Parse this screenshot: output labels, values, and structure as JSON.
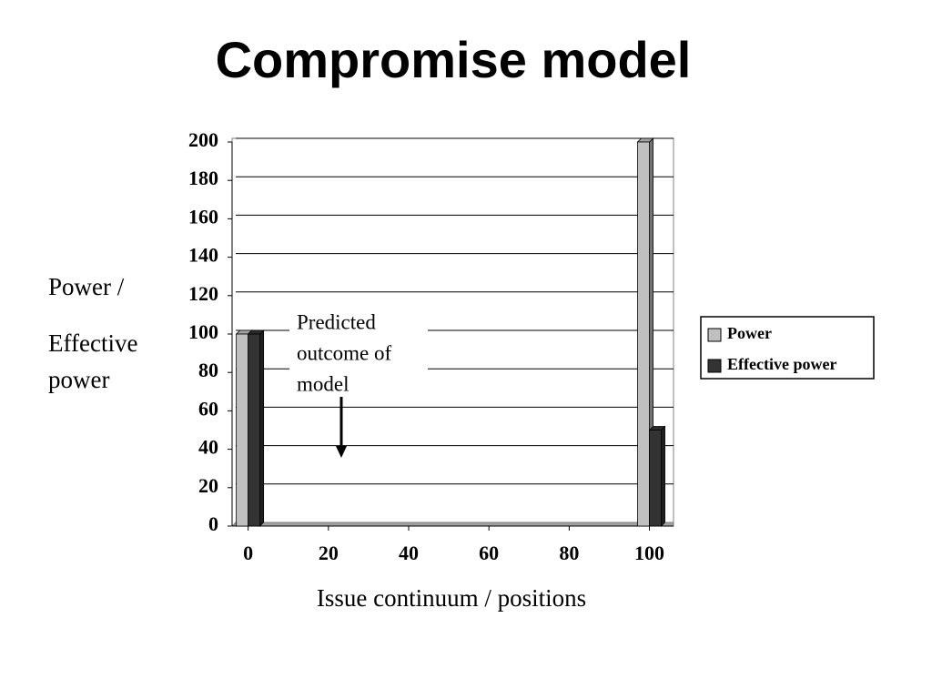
{
  "chart_data": {
    "type": "bar",
    "title": "Compromise model",
    "x_label": "Issue continuum / positions",
    "y_label": [
      "Power /",
      "Effective",
      "power"
    ],
    "annotation": [
      "Predicted",
      "outcome of",
      "model"
    ],
    "x": [
      0,
      100
    ],
    "xlim": [
      -4,
      106
    ],
    "xticks": [
      0,
      20,
      40,
      60,
      80,
      100
    ],
    "ylim": [
      0,
      200
    ],
    "yticks": [
      0,
      20,
      40,
      60,
      80,
      100,
      120,
      140,
      160,
      180,
      200
    ],
    "grid": true,
    "series": [
      {
        "name": "Power",
        "color": "#c0c0c0",
        "values": [
          100,
          200
        ]
      },
      {
        "name": "Effective power",
        "color": "#333333",
        "values": [
          100,
          50
        ]
      }
    ]
  }
}
